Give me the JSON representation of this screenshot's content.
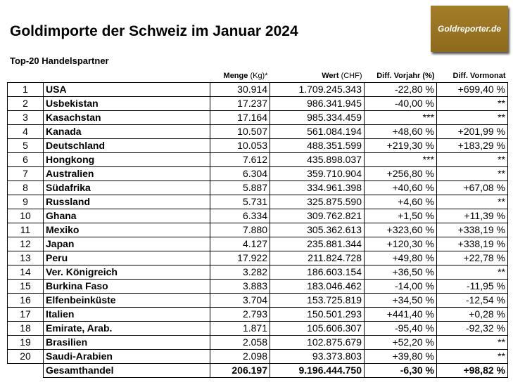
{
  "title": "Goldimporte der Schweiz im Januar 2024",
  "subtitle": "Top-20 Handelspartner",
  "logo": "Goldreporter.de",
  "headers": {
    "menge": "Menge",
    "menge_unit": "(Kg)*",
    "wert": "Wert",
    "wert_unit": "(CHF)",
    "vorjahr": "Diff. Vorjahr (%)",
    "vormonat": "Diff. Vormonat"
  },
  "rows": [
    [
      "1",
      "USA",
      "30.914",
      "1.709.245.343",
      "-22,80 %",
      "+699,40 %"
    ],
    [
      "2",
      "Usbekistan",
      "17.237",
      "986.341.945",
      "-40,00 %",
      "**"
    ],
    [
      "3",
      "Kasachstan",
      "17.164",
      "985.334.459",
      "***",
      "**"
    ],
    [
      "4",
      "Kanada",
      "10.507",
      "561.084.194",
      "+48,60 %",
      "+201,99 %"
    ],
    [
      "5",
      "Deutschland",
      "10.053",
      "488.351.599",
      "+219,30 %",
      "+183,29 %"
    ],
    [
      "6",
      "Hongkong",
      "7.612",
      "435.898.037",
      "***",
      "**"
    ],
    [
      "7",
      "Australien",
      "6.304",
      "359.710.904",
      "+256,80 %",
      "**"
    ],
    [
      "8",
      "Südafrika",
      "5.887",
      "334.961.398",
      "+40,60 %",
      "+67,08 %"
    ],
    [
      "9",
      "Russland",
      "5.731",
      "325.875.590",
      "+4,60 %",
      "**"
    ],
    [
      "10",
      "Ghana",
      "6.334",
      "309.762.821",
      "+1,50 %",
      "+11,39 %"
    ],
    [
      "11",
      "Mexiko",
      "7.880",
      "305.362.613",
      "+323,60 %",
      "+338,19 %"
    ],
    [
      "12",
      "Japan",
      "4.127",
      "235.881.344",
      "+120,30 %",
      "+338,19 %"
    ],
    [
      "13",
      "Peru",
      "17.922",
      "211.824.728",
      "+49,80 %",
      "+22,78 %"
    ],
    [
      "14",
      "Ver. Königreich",
      "3.282",
      "186.603.154",
      "+36,50 %",
      "**"
    ],
    [
      "15",
      "Burkina Faso",
      "3.883",
      "183.046.462",
      "-14,00 %",
      "-11,95 %"
    ],
    [
      "16",
      "Elfenbeinküste",
      "3.704",
      "153.725.819",
      "+34,50 %",
      "-12,54 %"
    ],
    [
      "17",
      "Italien",
      "2.793",
      "150.501.293",
      "+441,40 %",
      "+0,28 %"
    ],
    [
      "18",
      "Emirate, Arab.",
      "1.871",
      "105.606.307",
      "-95,40 %",
      "-92,32 %"
    ],
    [
      "19",
      "Brasilien",
      "2.058",
      "102.875.679",
      "+52,20 %",
      "**"
    ],
    [
      "20",
      "Saudi-Arabien",
      "2.098",
      "93.373.803",
      "+39,80 %",
      "**"
    ]
  ],
  "total": [
    "Gesamthandel",
    "206.197",
    "9.196.444.750",
    "-6,30 %",
    "+98,82 %"
  ]
}
